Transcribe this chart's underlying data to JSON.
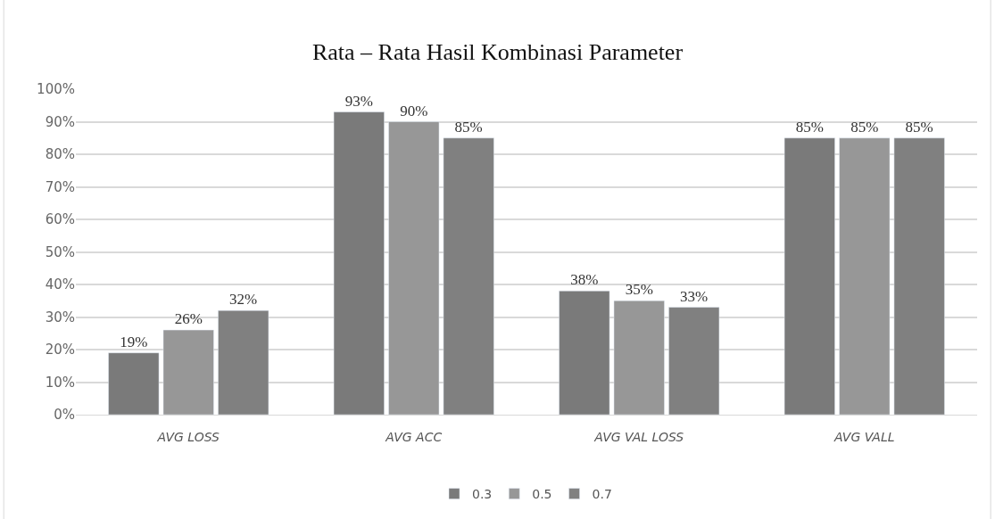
{
  "chart_data": {
    "type": "bar",
    "title": "Rata – Rata Hasil Kombinasi Parameter",
    "categories": [
      "AVG LOSS",
      "AVG ACC",
      "AVG VAL LOSS",
      "AVG VALL"
    ],
    "series": [
      {
        "name": "0.3",
        "color": "#7a7a7a",
        "values": [
          19,
          93,
          38,
          85
        ],
        "value_labels": [
          "19%",
          "93%",
          "38%",
          "85%"
        ]
      },
      {
        "name": "0.5",
        "color": "#979797",
        "values": [
          26,
          90,
          35,
          85
        ],
        "value_labels": [
          "26%",
          "90%",
          "35%",
          "85%"
        ]
      },
      {
        "name": "0.7",
        "color": "#808080",
        "values": [
          32,
          85,
          33,
          85
        ],
        "value_labels": [
          "32%",
          "85%",
          "33%",
          "85%"
        ]
      }
    ],
    "ylim": [
      0,
      100
    ],
    "yticks": [
      {
        "value": 0,
        "label": "0%"
      },
      {
        "value": 10,
        "label": "10%"
      },
      {
        "value": 20,
        "label": "20%"
      },
      {
        "value": 30,
        "label": "30%"
      },
      {
        "value": 40,
        "label": "40%"
      },
      {
        "value": 50,
        "label": "50%"
      },
      {
        "value": 60,
        "label": "60%"
      },
      {
        "value": 70,
        "label": "70%"
      },
      {
        "value": 80,
        "label": "80%"
      },
      {
        "value": 90,
        "label": "90%"
      },
      {
        "value": 100,
        "label": "100%"
      }
    ],
    "grid": "y",
    "legend": "bottom"
  }
}
